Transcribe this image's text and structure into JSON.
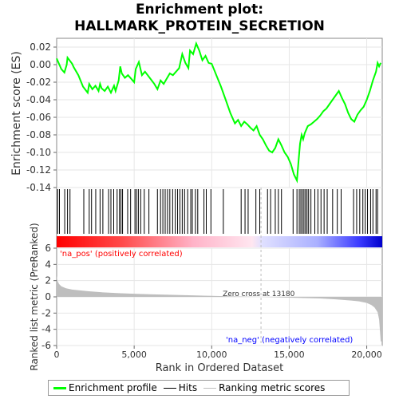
{
  "title_line1": "Enrichment plot:",
  "title_line2": "HALLMARK_PROTEIN_SECRETION",
  "colors": {
    "es_line": "#00ff00",
    "hits": "#000000",
    "metric_fill": "#bebebe",
    "pos_label": "#ff0000",
    "neg_label": "#0000ff",
    "zero_cross_line": "#bebebe"
  },
  "legend": {
    "es": "Enrichment profile",
    "hits": "Hits",
    "metric": "Ranking metric scores"
  },
  "chart_data": [
    {
      "type": "line",
      "title": "Enrichment plot: HALLMARK_PROTEIN_SECRETION",
      "ylabel": "Enrichment score (ES)",
      "xlim": [
        0,
        21000
      ],
      "ylim": [
        -0.14,
        0.03
      ],
      "yticks": [
        0.02,
        0.0,
        -0.02,
        -0.04,
        -0.06,
        -0.08,
        -0.1,
        -0.12,
        -0.14
      ],
      "ytick_labels": [
        "0.02",
        "0.00",
        "-0.02",
        "-0.04",
        "-0.06",
        "-0.08",
        "-0.10",
        "-0.12",
        "-0.14"
      ],
      "series": [
        {
          "name": "Enrichment profile",
          "x": [
            0,
            300,
            500,
            650,
            700,
            1000,
            1100,
            1400,
            1700,
            2000,
            2100,
            2300,
            2500,
            2700,
            2800,
            2900,
            3100,
            3300,
            3500,
            3700,
            3800,
            4000,
            4100,
            4200,
            4400,
            4600,
            4800,
            5000,
            5100,
            5300,
            5500,
            5700,
            6000,
            6300,
            6500,
            6700,
            6900,
            7100,
            7300,
            7500,
            7700,
            7900,
            8100,
            8300,
            8500,
            8600,
            8800,
            9000,
            9200,
            9400,
            9600,
            9800,
            10000,
            10300,
            10600,
            10900,
            11200,
            11500,
            11700,
            11900,
            12100,
            12300,
            12500,
            12700,
            12900,
            13100,
            13300,
            13500,
            13700,
            13900,
            14100,
            14300,
            14500,
            14700,
            14900,
            15100,
            15300,
            15500,
            15600,
            15700,
            15800,
            15900,
            16000,
            16200,
            16400,
            16600,
            16800,
            17000,
            17200,
            17400,
            17600,
            17800,
            18000,
            18200,
            18400,
            18600,
            18800,
            19000,
            19200,
            19400,
            19600,
            19800,
            20000,
            20200,
            20400,
            20600,
            20700,
            20800,
            20900
          ],
          "y": [
            0.007,
            -0.005,
            -0.009,
            0.0,
            0.008,
            0.001,
            -0.003,
            -0.012,
            -0.025,
            -0.032,
            -0.022,
            -0.028,
            -0.024,
            -0.03,
            -0.022,
            -0.027,
            -0.03,
            -0.025,
            -0.032,
            -0.024,
            -0.03,
            -0.018,
            -0.002,
            -0.01,
            -0.015,
            -0.012,
            -0.016,
            -0.02,
            -0.005,
            0.003,
            -0.012,
            -0.008,
            -0.015,
            -0.022,
            -0.028,
            -0.018,
            -0.022,
            -0.016,
            -0.01,
            -0.012,
            -0.008,
            -0.004,
            0.012,
            0.002,
            -0.004,
            0.016,
            0.012,
            0.024,
            0.016,
            0.005,
            0.01,
            0.002,
            0.001,
            -0.012,
            -0.025,
            -0.04,
            -0.055,
            -0.067,
            -0.063,
            -0.07,
            -0.065,
            -0.068,
            -0.072,
            -0.075,
            -0.07,
            -0.08,
            -0.085,
            -0.092,
            -0.098,
            -0.1,
            -0.095,
            -0.085,
            -0.092,
            -0.1,
            -0.105,
            -0.113,
            -0.125,
            -0.132,
            -0.11,
            -0.09,
            -0.08,
            -0.085,
            -0.078,
            -0.07,
            -0.068,
            -0.065,
            -0.062,
            -0.058,
            -0.053,
            -0.05,
            -0.045,
            -0.04,
            -0.035,
            -0.03,
            -0.038,
            -0.045,
            -0.055,
            -0.062,
            -0.065,
            -0.057,
            -0.052,
            -0.048,
            -0.04,
            -0.03,
            -0.018,
            -0.008,
            0.002,
            -0.002,
            0.002
          ]
        }
      ]
    },
    {
      "type": "scatter",
      "series": [
        {
          "name": "Hits",
          "x": [
            60,
            180,
            520,
            700,
            860,
            1750,
            2100,
            2250,
            2520,
            2800,
            2980,
            3350,
            3500,
            3680,
            3900,
            4050,
            4150,
            4250,
            4580,
            4770,
            5050,
            5150,
            5270,
            5420,
            5650,
            5950,
            6500,
            6700,
            6850,
            7000,
            7150,
            7300,
            7480,
            7650,
            7800,
            7950,
            8100,
            8250,
            8450,
            8650,
            8750,
            8950,
            9100,
            9500,
            9650,
            9950,
            10750,
            11900,
            12150,
            12350,
            12850,
            13100,
            13600,
            13800,
            14100,
            14300,
            14500,
            15250,
            15500,
            15650,
            15750,
            15850,
            15950,
            16050,
            16150,
            16250,
            16400,
            16650,
            16850,
            17050,
            17250,
            17450,
            17800,
            18100,
            18350,
            19150,
            19350,
            19550,
            19750,
            19900,
            20050,
            20250,
            20400,
            20600,
            20700
          ]
        }
      ]
    },
    {
      "type": "area",
      "ylabel": "Ranked list metric (PreRanked)",
      "xlabel": "Rank in Ordered Dataset",
      "xlim": [
        0,
        21000
      ],
      "ylim": [
        -6,
        6
      ],
      "xticks": [
        0,
        5000,
        10000,
        15000,
        20000
      ],
      "xtick_labels": [
        "0",
        "5,000",
        "10,000",
        "15,000",
        "20,000"
      ],
      "yticks": [
        6,
        4,
        2,
        0,
        -2,
        -4,
        -6
      ],
      "ytick_labels": [
        "6",
        "4",
        "2",
        "0",
        "-2",
        "-4",
        "-6"
      ],
      "series": [
        {
          "name": "Ranking metric scores",
          "x": [
            0,
            50,
            150,
            300,
            600,
            1000,
            2000,
            3000,
            4000,
            5000,
            6000,
            7000,
            8000,
            9000,
            10000,
            11000,
            12000,
            13180,
            14000,
            15000,
            16000,
            17000,
            18000,
            19000,
            19500,
            20000,
            20300,
            20500,
            20700,
            20800,
            20900,
            21000
          ],
          "y": [
            2.6,
            2.0,
            1.6,
            1.3,
            1.05,
            0.9,
            0.7,
            0.55,
            0.45,
            0.38,
            0.32,
            0.27,
            0.22,
            0.17,
            0.12,
            0.08,
            0.04,
            0.0,
            -0.05,
            -0.1,
            -0.15,
            -0.2,
            -0.3,
            -0.45,
            -0.55,
            -0.75,
            -1.0,
            -1.3,
            -1.9,
            -2.8,
            -5.5,
            -5.5
          ]
        }
      ],
      "annotations": {
        "zero_cross": "Zero cross at 13180",
        "zero_cross_x": 13180,
        "pos_label": "'na_pos' (positively correlated)",
        "neg_label": "'na_neg' (negatively correlated)"
      }
    }
  ]
}
